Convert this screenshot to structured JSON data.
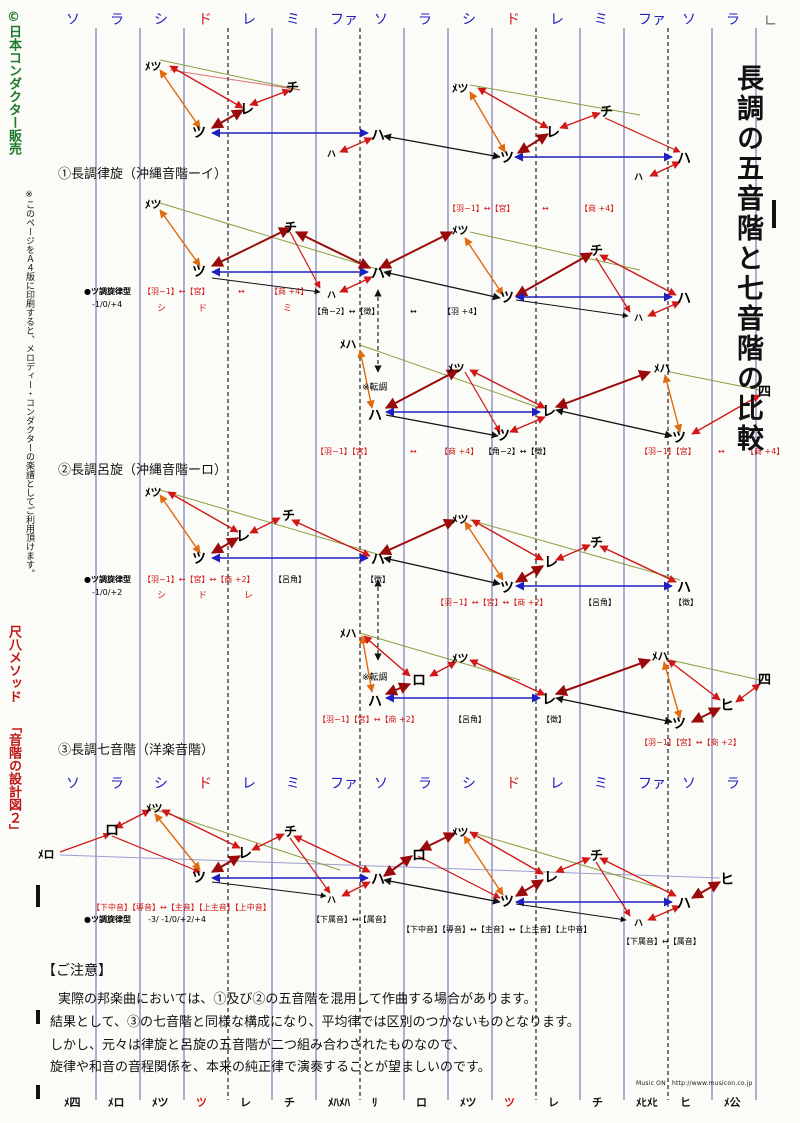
{
  "title": "長調の五音階と七音階の比較",
  "side_left": {
    "company": "©日本コンダクター販売",
    "notice": "※このページをＡ４版に印刷すると、メロディー・コンダクターの楽譜としてご利用頂けます。",
    "series": "尺八メソッド",
    "subtitle": "「音階の設計図２」"
  },
  "scale_top": [
    "ソ",
    "ラ",
    "シ",
    "ド",
    "レ",
    "ミ",
    "ファ",
    "ソ",
    "ラ",
    "シ",
    "ド",
    "レ",
    "ミ",
    "ファ",
    "ソ",
    "ラ"
  ],
  "scale_mid": [
    "ソ",
    "ラ",
    "シ",
    "ド",
    "レ",
    "ミ",
    "ファ",
    "ソ",
    "ラ",
    "シ",
    "ド",
    "レ",
    "ミ",
    "ファ",
    "ソ",
    "ラ"
  ],
  "bottom_row": [
    "ﾒ四",
    "ﾒロ",
    "ﾒツ",
    "ツ",
    "レ",
    "チ",
    "ﾒﾊﾒﾊ",
    "ﾘ",
    "ロ",
    "ﾒツ",
    "ツ",
    "レ",
    "チ",
    "ﾒﾋﾒﾋ",
    "ヒ",
    "ﾒ公"
  ],
  "sections": {
    "s1": "①長調律旋（沖縄音階ーイ）",
    "s2": "②長調呂旋（沖縄音階ーロ）",
    "s3": "③長調七音階（洋楽音階）"
  },
  "type_label": "●ツ調旋律型",
  "type_values": {
    "s1": "-1/0/+4",
    "s2": "-1/0/+2",
    "s3": "-3/ -1/0/+2/+4"
  },
  "tenchou": "※転調",
  "notes": {
    "tsu": "ツ",
    "re": "レ",
    "chi": "チ",
    "ha": "ハ",
    "ro": "ロ",
    "hi": "ヒ",
    "yon": "四",
    "metsu": "ﾒツ",
    "meha": "ﾒハ",
    "mero": "ﾒロ",
    "ha_small": "ハ"
  },
  "labels": {
    "s0a": "【羽−1】↔【宮】",
    "s0b": "↔",
    "s0c": "【商 +4】",
    "s1a": "【羽−1】↔【宮】",
    "s1b": "↔",
    "s1c": "【商 +4】",
    "s1d": "シ",
    "s1e": "ド",
    "s1f": "ミ",
    "s1g": "【角−2】↔【徴】",
    "s1h": "↔",
    "s1i": "【羽 +4】",
    "s1j": "【羽−1】【宮】",
    "s1k": "↔",
    "s1l": "【商 +4】",
    "s1m": "【角−2】↔【徴】",
    "s1n": "【羽−1】【宮】",
    "s1o": "↔",
    "s1p": "【商 +4】",
    "s2a": "【羽−1】↔【宮】↔【商 +2】",
    "s2b": "【呂角】",
    "s2c": "シ",
    "s2d": "ド",
    "s2e": "レ",
    "s2f": "【徴】",
    "s2g": "【羽−1】↔【宮】↔【商 +2】",
    "s2h": "【呂角】",
    "s2i": "【徴】",
    "s2j": "【羽−1】【宮】↔【商 +2】",
    "s2k": "【呂角】",
    "s2l": "【徴】",
    "s2m": "【羽−1】【宮】↔【商 +2】",
    "s3a": "【下中音】【導音】↔【主音】【上主音】【上中音】",
    "s3b": "【下属音】↔【属音】",
    "s3c": "【下中音】【導音】↔【主音】↔【上主音】【上中音】",
    "s3d": "【下属音】↔【属音】"
  },
  "note_head": "【ご注意】",
  "note_lines": [
    "実際の邦楽曲においては、①及び②の五音階を混用して作曲する場合があります。",
    "結果として、③の七音階と同様な構成になり、平均律では区別のつかないものとなります。",
    "しかし、元々は律旋と呂旋の五音階が二つ組み合わされたものなので、",
    "旋律や和音の音程関係を、本来の純正律で演奏することが望ましいのです。"
  ],
  "website": "Music ON　http://www.musicon.co.jp",
  "colors": {
    "blue": "#2020c0",
    "red": "#d01818",
    "dark_red": "#9a0a0a",
    "orange": "#e06a10",
    "green": "#8aa040",
    "line": "#404090",
    "dash": "#222222"
  }
}
